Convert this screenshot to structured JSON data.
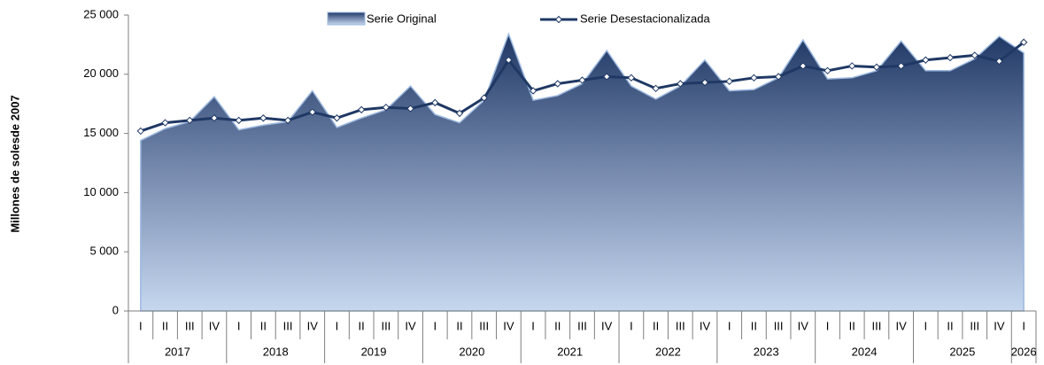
{
  "chart_data": {
    "type": "area-line",
    "y_label": "Millones de solesde 2007",
    "categories": [
      "I",
      "II",
      "III",
      "IV",
      "I",
      "II",
      "III",
      "IV",
      "I",
      "II",
      "III",
      "IV",
      "I",
      "II",
      "III",
      "IV",
      "I",
      "II",
      "III",
      "IV",
      "I",
      "II",
      "III",
      "IV",
      "I",
      "II",
      "III",
      "IV",
      "I",
      "II",
      "III",
      "IV",
      "I",
      "II",
      "III",
      "IV",
      "I"
    ],
    "x_groups": [
      "2017",
      "2018",
      "2019",
      "2020",
      "2021",
      "2022",
      "2023",
      "2024",
      "2025",
      "2026"
    ],
    "series": [
      {
        "name": "Serie Original",
        "color": "#1f3864",
        "values": [
          14400,
          15400,
          16000,
          18100,
          15300,
          15700,
          16000,
          18600,
          15500,
          16300,
          17000,
          19000,
          16600,
          15900,
          17800,
          23400,
          17800,
          18200,
          19200,
          22000,
          19000,
          17900,
          19000,
          21200,
          18600,
          18700,
          19700,
          22900,
          19600,
          19700,
          20300,
          22800,
          20300,
          20300,
          21300,
          23200,
          21800
        ]
      },
      {
        "name": "Serie Desestacionalizada",
        "color": "#1f3864",
        "values": [
          15200,
          15900,
          16100,
          16300,
          16100,
          16300,
          16100,
          16800,
          16300,
          17000,
          17200,
          17100,
          17600,
          16700,
          18000,
          21200,
          18600,
          19200,
          19500,
          19800,
          19700,
          18800,
          19200,
          19300,
          19400,
          19700,
          19800,
          20700,
          20300,
          20700,
          20600,
          20700,
          21200,
          21400,
          21600,
          21100,
          22700
        ]
      }
    ],
    "ylim": [
      0,
      25000
    ],
    "yticks": [
      0,
      {
        "value": 5000,
        "label": "5 000"
      },
      {
        "value": 10000,
        "label": "10 000"
      },
      {
        "value": 15000,
        "label": "15 000"
      },
      {
        "value": 20000,
        "label": "20 000"
      },
      {
        "value": 25000,
        "label": "25 000"
      }
    ]
  }
}
